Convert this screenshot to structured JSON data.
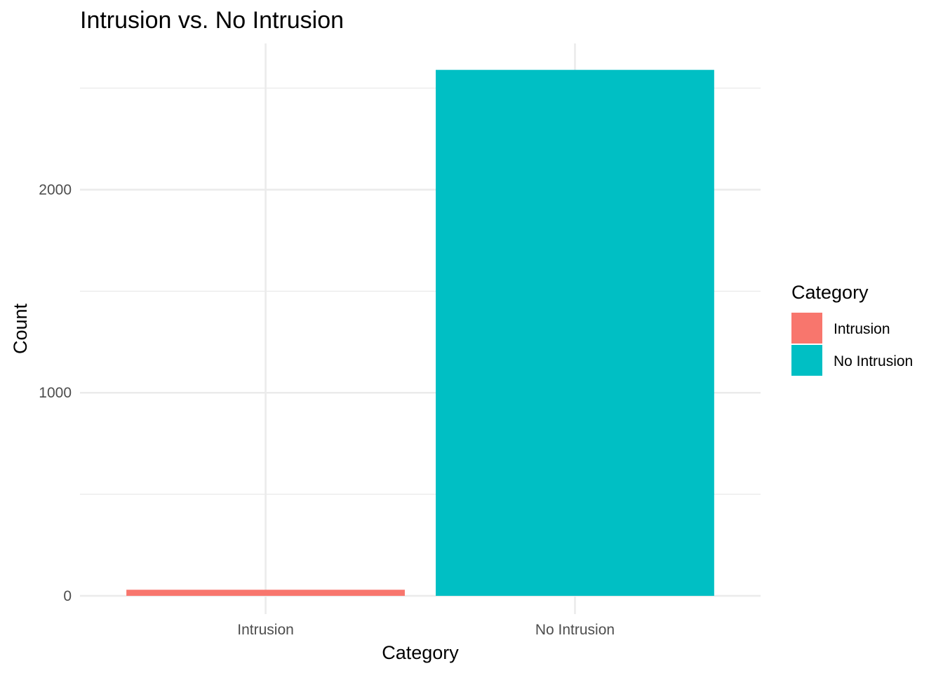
{
  "chart_data": {
    "type": "bar",
    "title": "Intrusion vs. No Intrusion",
    "xlabel": "Category",
    "ylabel": "Count",
    "categories": [
      "Intrusion",
      "No Intrusion"
    ],
    "values": [
      30,
      2590
    ],
    "colors": [
      "#F8766D",
      "#00BFC4"
    ],
    "ylim": [
      -90,
      2720
    ],
    "yticks": [
      0,
      1000,
      2000
    ],
    "yticks_minor": [
      500,
      1500,
      2500
    ],
    "grid": true,
    "legend": {
      "title": "Category",
      "position": "right",
      "entries": [
        "Intrusion",
        "No Intrusion"
      ]
    }
  }
}
